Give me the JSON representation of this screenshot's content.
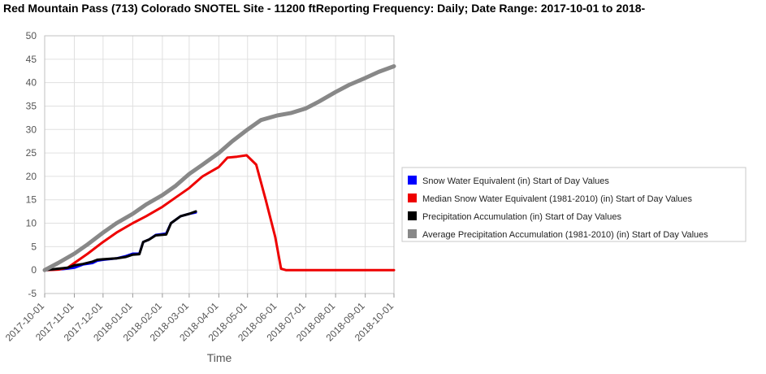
{
  "title": "Red Mountain Pass (713) Colorado  SNOTEL Site - 11200 ftReporting Frequency: Daily; Date Range: 2017-10-01 to 2018-",
  "chart_data": {
    "type": "line",
    "xlabel": "Time",
    "ylabel": "",
    "ylim": [
      -5,
      50
    ],
    "yticks": [
      -5,
      0,
      5,
      10,
      15,
      20,
      25,
      30,
      35,
      40,
      45,
      50
    ],
    "xlim": [
      "2017-10-01",
      "2018-10-01"
    ],
    "xticks": [
      "2017-10-01",
      "2017-11-01",
      "2017-12-01",
      "2018-01-01",
      "2018-02-01",
      "2018-03-01",
      "2018-04-01",
      "2018-05-01",
      "2018-06-01",
      "2018-07-01",
      "2018-08-01",
      "2018-09-01",
      "2018-10-01"
    ],
    "grid": true,
    "legend_position": "right",
    "series": [
      {
        "name": "Snow Water Equivalent (in) Start of Day Values",
        "color": "#0000ff",
        "width": 3,
        "points": [
          [
            "2017-10-01",
            0
          ],
          [
            "2017-10-20",
            0.2
          ],
          [
            "2017-11-01",
            0.5
          ],
          [
            "2017-11-10",
            1.2
          ],
          [
            "2017-11-20",
            1.5
          ],
          [
            "2017-11-25",
            2.0
          ],
          [
            "2017-12-01",
            2.2
          ],
          [
            "2017-12-15",
            2.5
          ],
          [
            "2017-12-25",
            3.0
          ],
          [
            "2018-01-01",
            3.5
          ],
          [
            "2018-01-08",
            3.5
          ],
          [
            "2018-01-12",
            6.0
          ],
          [
            "2018-01-18",
            6.5
          ],
          [
            "2018-01-25",
            7.5
          ],
          [
            "2018-02-05",
            7.8
          ],
          [
            "2018-02-10",
            10.0
          ],
          [
            "2018-02-20",
            11.5
          ],
          [
            "2018-03-01",
            12.0
          ],
          [
            "2018-03-08",
            12.3
          ]
        ]
      },
      {
        "name": "Median Snow Water Equivalent (1981-2010) (in) Start of Day Values",
        "color": "#ee0000",
        "width": 3,
        "points": [
          [
            "2017-10-01",
            0
          ],
          [
            "2017-10-15",
            0.1
          ],
          [
            "2017-10-25",
            0.5
          ],
          [
            "2017-11-01",
            1.5
          ],
          [
            "2017-11-15",
            3.5
          ],
          [
            "2017-12-01",
            6.0
          ],
          [
            "2017-12-15",
            8.0
          ],
          [
            "2018-01-01",
            10.0
          ],
          [
            "2018-01-15",
            11.5
          ],
          [
            "2018-02-01",
            13.5
          ],
          [
            "2018-02-15",
            15.5
          ],
          [
            "2018-03-01",
            17.5
          ],
          [
            "2018-03-15",
            20.0
          ],
          [
            "2018-04-01",
            22.0
          ],
          [
            "2018-04-10",
            24.0
          ],
          [
            "2018-04-20",
            24.2
          ],
          [
            "2018-04-30",
            24.5
          ],
          [
            "2018-05-10",
            22.5
          ],
          [
            "2018-05-20",
            15.0
          ],
          [
            "2018-05-30",
            7.0
          ],
          [
            "2018-06-05",
            0.3
          ],
          [
            "2018-06-10",
            0
          ],
          [
            "2018-10-01",
            0
          ]
        ]
      },
      {
        "name": "Precipitation Accumulation (in) Start of Day Values",
        "color": "#000000",
        "width": 3,
        "points": [
          [
            "2017-10-01",
            0
          ],
          [
            "2017-10-15",
            0.3
          ],
          [
            "2017-10-25",
            0.5
          ],
          [
            "2017-11-01",
            1.0
          ],
          [
            "2017-11-10",
            1.3
          ],
          [
            "2017-11-20",
            1.8
          ],
          [
            "2017-11-25",
            2.2
          ],
          [
            "2017-12-01",
            2.3
          ],
          [
            "2017-12-15",
            2.5
          ],
          [
            "2017-12-25",
            2.8
          ],
          [
            "2018-01-01",
            3.3
          ],
          [
            "2018-01-08",
            3.4
          ],
          [
            "2018-01-12",
            6.0
          ],
          [
            "2018-01-18",
            6.5
          ],
          [
            "2018-01-25",
            7.4
          ],
          [
            "2018-02-05",
            7.6
          ],
          [
            "2018-02-10",
            10.0
          ],
          [
            "2018-02-20",
            11.5
          ],
          [
            "2018-03-01",
            12.0
          ],
          [
            "2018-03-08",
            12.5
          ]
        ]
      },
      {
        "name": "Average Precipitation Accumulation (1981-2010) (in) Start of Day Values",
        "color": "#888888",
        "width": 5,
        "points": [
          [
            "2017-10-01",
            0
          ],
          [
            "2017-10-15",
            1.5
          ],
          [
            "2017-11-01",
            3.5
          ],
          [
            "2017-11-15",
            5.5
          ],
          [
            "2017-12-01",
            8.0
          ],
          [
            "2017-12-15",
            10.0
          ],
          [
            "2018-01-01",
            12.0
          ],
          [
            "2018-01-15",
            14.0
          ],
          [
            "2018-02-01",
            16.0
          ],
          [
            "2018-02-15",
            18.0
          ],
          [
            "2018-03-01",
            20.5
          ],
          [
            "2018-03-15",
            22.5
          ],
          [
            "2018-04-01",
            25.0
          ],
          [
            "2018-04-15",
            27.5
          ],
          [
            "2018-05-01",
            30.0
          ],
          [
            "2018-05-15",
            32.0
          ],
          [
            "2018-06-01",
            33.0
          ],
          [
            "2018-06-15",
            33.5
          ],
          [
            "2018-07-01",
            34.5
          ],
          [
            "2018-07-15",
            36.0
          ],
          [
            "2018-08-01",
            38.0
          ],
          [
            "2018-08-15",
            39.5
          ],
          [
            "2018-09-01",
            41.0
          ],
          [
            "2018-09-15",
            42.3
          ],
          [
            "2018-10-01",
            43.5
          ]
        ]
      }
    ]
  }
}
